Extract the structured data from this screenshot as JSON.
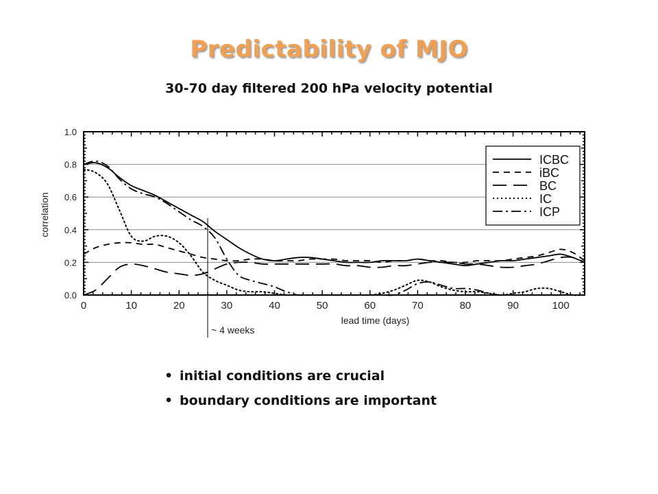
{
  "slide": {
    "title": "Predictability of MJO",
    "bullets": [
      "initial conditions are crucial",
      "boundary conditions are important"
    ]
  },
  "colors": {
    "title": "#f0a050",
    "grid": "#8a8a8a",
    "ink": "#000000"
  },
  "chart_data": {
    "type": "line",
    "title": "30-70 day filtered 200 hPa velocity potential",
    "xlabel": "lead time (days)",
    "ylabel": "correlation",
    "xlim": [
      0,
      105
    ],
    "ylim": [
      0,
      1.0
    ],
    "x_ticks": [
      0,
      10,
      20,
      30,
      40,
      50,
      60,
      70,
      80,
      90,
      100
    ],
    "y_ticks": [
      0.0,
      0.2,
      0.4,
      0.6,
      0.8,
      1.0
    ],
    "y_tick_labels": [
      "0.0",
      "0.2",
      "0.4",
      "0.6",
      "0.8",
      "1.0"
    ],
    "grid_y": [
      0.2,
      0.4,
      0.6,
      0.8
    ],
    "legend_position": "top-right",
    "annotation": {
      "x": 26,
      "label": "~ 4 weeks"
    },
    "x": [
      0,
      2.5,
      5,
      7.5,
      10,
      12.5,
      15,
      17.5,
      20,
      22.5,
      25,
      27.5,
      30,
      32.5,
      35,
      37.5,
      40,
      42.5,
      45,
      47.5,
      50,
      52.5,
      55,
      57.5,
      60,
      62.5,
      65,
      67.5,
      70,
      72.5,
      75,
      77.5,
      80,
      82.5,
      85,
      87.5,
      90,
      92.5,
      95,
      97.5,
      100,
      102.5,
      105
    ],
    "series": [
      {
        "name": "ICBC",
        "dash": "solid",
        "values": [
          0.8,
          0.81,
          0.78,
          0.72,
          0.67,
          0.64,
          0.61,
          0.57,
          0.53,
          0.49,
          0.45,
          0.39,
          0.34,
          0.29,
          0.25,
          0.22,
          0.21,
          0.22,
          0.23,
          0.23,
          0.22,
          0.21,
          0.2,
          0.2,
          0.2,
          0.21,
          0.21,
          0.21,
          0.22,
          0.21,
          0.2,
          0.19,
          0.18,
          0.19,
          0.2,
          0.21,
          0.21,
          0.22,
          0.23,
          0.24,
          0.25,
          0.23,
          0.2
        ]
      },
      {
        "name": "iBC",
        "dash": "short-dash",
        "values": [
          0.25,
          0.29,
          0.31,
          0.32,
          0.32,
          0.31,
          0.31,
          0.29,
          0.27,
          0.25,
          0.23,
          0.22,
          0.21,
          0.21,
          0.22,
          0.22,
          0.21,
          0.21,
          0.21,
          0.22,
          0.22,
          0.22,
          0.21,
          0.21,
          0.21,
          0.2,
          0.21,
          0.21,
          0.22,
          0.21,
          0.21,
          0.2,
          0.2,
          0.21,
          0.21,
          0.21,
          0.22,
          0.23,
          0.24,
          0.26,
          0.28,
          0.26,
          0.21
        ]
      },
      {
        "name": "BC",
        "dash": "long-dash",
        "values": [
          0.0,
          0.03,
          0.1,
          0.17,
          0.19,
          0.18,
          0.16,
          0.14,
          0.13,
          0.12,
          0.13,
          0.16,
          0.19,
          0.2,
          0.2,
          0.19,
          0.19,
          0.19,
          0.19,
          0.19,
          0.19,
          0.19,
          0.18,
          0.18,
          0.17,
          0.17,
          0.18,
          0.18,
          0.19,
          0.2,
          0.2,
          0.2,
          0.19,
          0.19,
          0.18,
          0.17,
          0.17,
          0.18,
          0.19,
          0.21,
          0.23,
          0.23,
          0.2
        ]
      },
      {
        "name": "IC",
        "dash": "dotted",
        "values": [
          0.77,
          0.75,
          0.68,
          0.52,
          0.36,
          0.33,
          0.36,
          0.36,
          0.32,
          0.24,
          0.14,
          0.09,
          0.06,
          0.03,
          0.02,
          0.02,
          0.01,
          0.0,
          0.0,
          0.0,
          0.0,
          0.0,
          0.0,
          0.0,
          0.0,
          0.01,
          0.03,
          0.06,
          0.09,
          0.08,
          0.05,
          0.03,
          0.02,
          0.02,
          0.01,
          0.0,
          0.01,
          0.02,
          0.04,
          0.04,
          0.02,
          0.0,
          0.0
        ]
      },
      {
        "name": "ICP",
        "dash": "dash-dot",
        "values": [
          0.8,
          0.82,
          0.79,
          0.71,
          0.65,
          0.62,
          0.6,
          0.56,
          0.51,
          0.46,
          0.42,
          0.35,
          0.22,
          0.12,
          0.09,
          0.07,
          0.05,
          0.02,
          0.0,
          0.0,
          0.0,
          0.0,
          0.0,
          0.0,
          0.0,
          0.0,
          0.0,
          0.03,
          0.07,
          0.08,
          0.06,
          0.04,
          0.04,
          0.03,
          0.01,
          0.0,
          0.0,
          0.0,
          0.0,
          0.0,
          0.0,
          0.0,
          0.0
        ]
      }
    ]
  }
}
